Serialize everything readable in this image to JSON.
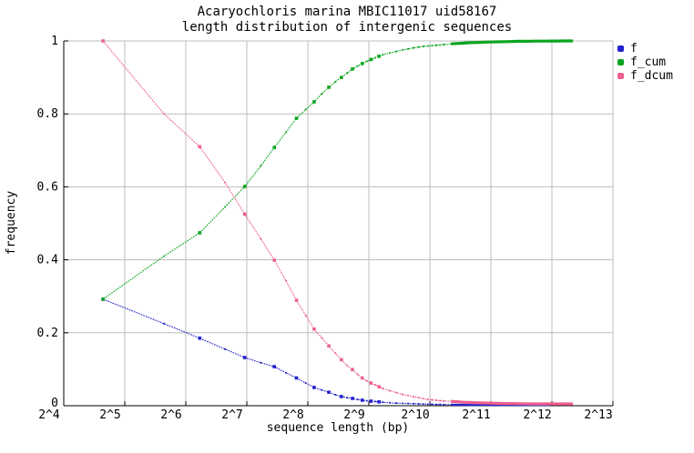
{
  "title": {
    "line1": "Acaryochloris marina MBIC11017 uid58167",
    "line2": "length distribution of intergenic sequences"
  },
  "x_axis": {
    "label": "sequence length (bp)",
    "scale": "log2",
    "tick_labels": [
      "2^4",
      "2^5",
      "2^6",
      "2^7",
      "2^8",
      "2^9",
      "2^10",
      "2^11",
      "2^12",
      "2^13"
    ],
    "tick_values_log2": [
      4,
      5,
      6,
      7,
      8,
      9,
      10,
      11,
      12,
      13
    ]
  },
  "y_axis": {
    "label": "frequency",
    "tick_labels": [
      "0",
      "0.2",
      "0.4",
      "0.6",
      "0.8",
      "1"
    ],
    "tick_values": [
      0,
      0.2,
      0.4,
      0.6,
      0.8,
      1
    ]
  },
  "legend": {
    "items": [
      {
        "label": "f",
        "color": "#2222cc"
      },
      {
        "label": "f_cum",
        "color": "#0aa51e"
      },
      {
        "label": "f_dcum",
        "color": "#ee5f8e"
      }
    ]
  },
  "palette": {
    "background": "#ffffff",
    "grid": "#bdbdbd",
    "axis": "#000000",
    "series_f": "#2222cc",
    "series_f_cum": "#0aa51e",
    "series_f_dcum": "#ee5f8e"
  },
  "chart_data": {
    "type": "line",
    "title": "Acaryochloris marina MBIC11017 uid58167 — length distribution of intergenic sequences",
    "xlabel": "sequence length (bp)",
    "ylabel": "frequency",
    "x_scale": "log2",
    "xlim_log2": [
      4,
      13
    ],
    "ylim": [
      0,
      1
    ],
    "grid": true,
    "legend_position": "outside-top-right",
    "marker_every_bp": 50,
    "series": [
      {
        "name": "f",
        "color": "#2222cc",
        "points": [
          [
            25,
            0.292
          ],
          [
            50,
            0.225
          ],
          [
            75,
            0.185
          ],
          [
            100,
            0.155
          ],
          [
            125,
            0.132
          ],
          [
            150,
            0.118
          ],
          [
            175,
            0.107
          ],
          [
            200,
            0.09
          ],
          [
            225,
            0.076
          ],
          [
            250,
            0.062
          ],
          [
            275,
            0.05
          ],
          [
            300,
            0.043
          ],
          [
            325,
            0.037
          ],
          [
            350,
            0.03
          ],
          [
            375,
            0.025
          ],
          [
            400,
            0.022
          ],
          [
            425,
            0.02
          ],
          [
            450,
            0.017
          ],
          [
            475,
            0.015
          ],
          [
            500,
            0.0135
          ],
          [
            525,
            0.0125
          ],
          [
            550,
            0.0115
          ],
          [
            575,
            0.0105
          ],
          [
            600,
            0.0095
          ],
          [
            650,
            0.008
          ],
          [
            700,
            0.007
          ],
          [
            750,
            0.0065
          ],
          [
            800,
            0.006
          ],
          [
            850,
            0.0055
          ],
          [
            900,
            0.005
          ],
          [
            950,
            0.0045
          ],
          [
            1000,
            0.004
          ],
          [
            1050,
            0.004
          ],
          [
            1100,
            0.0035
          ],
          [
            1150,
            0.0035
          ],
          [
            1200,
            0.003
          ],
          [
            1300,
            0.003
          ],
          [
            1400,
            0.0025
          ],
          [
            1500,
            0.0025
          ],
          [
            1600,
            0.002
          ],
          [
            1700,
            0.002
          ],
          [
            1800,
            0.002
          ],
          [
            1900,
            0.002
          ],
          [
            2000,
            0.002
          ],
          [
            2200,
            0.002
          ],
          [
            2400,
            0.002
          ],
          [
            2600,
            0.002
          ],
          [
            2800,
            0.002
          ],
          [
            3000,
            0.002
          ],
          [
            3200,
            0.002
          ],
          [
            3400,
            0.002
          ],
          [
            3600,
            0.002
          ],
          [
            3800,
            0.002
          ],
          [
            4000,
            0.002
          ]
        ]
      },
      {
        "name": "f_cum",
        "color": "#0aa51e",
        "points": [
          [
            25,
            0.292
          ],
          [
            50,
            0.41
          ],
          [
            75,
            0.474
          ],
          [
            100,
            0.545
          ],
          [
            125,
            0.601
          ],
          [
            150,
            0.657
          ],
          [
            175,
            0.708
          ],
          [
            200,
            0.75
          ],
          [
            225,
            0.788
          ],
          [
            250,
            0.812
          ],
          [
            275,
            0.833
          ],
          [
            300,
            0.855
          ],
          [
            325,
            0.873
          ],
          [
            350,
            0.888
          ],
          [
            375,
            0.9
          ],
          [
            400,
            0.912
          ],
          [
            425,
            0.923
          ],
          [
            450,
            0.931
          ],
          [
            475,
            0.938
          ],
          [
            500,
            0.944
          ],
          [
            525,
            0.949
          ],
          [
            550,
            0.954
          ],
          [
            575,
            0.958
          ],
          [
            600,
            0.962
          ],
          [
            650,
            0.967
          ],
          [
            700,
            0.971
          ],
          [
            750,
            0.975
          ],
          [
            800,
            0.978
          ],
          [
            850,
            0.981
          ],
          [
            900,
            0.983
          ],
          [
            950,
            0.985
          ],
          [
            1000,
            0.986
          ],
          [
            1050,
            0.987
          ],
          [
            1100,
            0.988
          ],
          [
            1150,
            0.989
          ],
          [
            1200,
            0.99
          ],
          [
            1300,
            0.992
          ],
          [
            1400,
            0.993
          ],
          [
            1500,
            0.994
          ],
          [
            1600,
            0.995
          ],
          [
            1700,
            0.9955
          ],
          [
            1800,
            0.996
          ],
          [
            1900,
            0.9965
          ],
          [
            2000,
            0.997
          ],
          [
            2200,
            0.9975
          ],
          [
            2400,
            0.998
          ],
          [
            2600,
            0.9985
          ],
          [
            2800,
            0.999
          ],
          [
            3000,
            0.999
          ],
          [
            3200,
            0.9992
          ],
          [
            3400,
            0.9994
          ],
          [
            3600,
            0.9995
          ],
          [
            3800,
            0.9996
          ],
          [
            4000,
            0.9997
          ],
          [
            4200,
            0.9998
          ],
          [
            4400,
            0.9998
          ],
          [
            4600,
            0.9999
          ],
          [
            4800,
            0.9999
          ],
          [
            5000,
            1.0
          ],
          [
            5200,
            1.0
          ]
        ]
      },
      {
        "name": "f_dcum",
        "color": "#ee5f8e",
        "points": [
          [
            25,
            1.0
          ],
          [
            50,
            0.8
          ],
          [
            75,
            0.71
          ],
          [
            100,
            0.612
          ],
          [
            125,
            0.525
          ],
          [
            150,
            0.458
          ],
          [
            175,
            0.399
          ],
          [
            200,
            0.342
          ],
          [
            225,
            0.289
          ],
          [
            250,
            0.248
          ],
          [
            275,
            0.21
          ],
          [
            300,
            0.186
          ],
          [
            325,
            0.164
          ],
          [
            350,
            0.144
          ],
          [
            375,
            0.126
          ],
          [
            400,
            0.11
          ],
          [
            425,
            0.099
          ],
          [
            450,
            0.086
          ],
          [
            475,
            0.076
          ],
          [
            500,
            0.068
          ],
          [
            525,
            0.062
          ],
          [
            550,
            0.057
          ],
          [
            575,
            0.052
          ],
          [
            600,
            0.047
          ],
          [
            650,
            0.041
          ],
          [
            700,
            0.036
          ],
          [
            750,
            0.031
          ],
          [
            800,
            0.028
          ],
          [
            850,
            0.0245
          ],
          [
            900,
            0.022
          ],
          [
            950,
            0.0195
          ],
          [
            1000,
            0.017
          ],
          [
            1050,
            0.016
          ],
          [
            1100,
            0.015
          ],
          [
            1150,
            0.014
          ],
          [
            1200,
            0.013
          ],
          [
            1300,
            0.012
          ],
          [
            1400,
            0.011
          ],
          [
            1500,
            0.0095
          ],
          [
            1600,
            0.009
          ],
          [
            1700,
            0.0085
          ],
          [
            1800,
            0.008
          ],
          [
            1900,
            0.0075
          ],
          [
            2000,
            0.007
          ],
          [
            2200,
            0.0065
          ],
          [
            2400,
            0.006
          ],
          [
            2600,
            0.006
          ],
          [
            2800,
            0.0055
          ],
          [
            3000,
            0.0055
          ],
          [
            3200,
            0.005
          ],
          [
            3400,
            0.005
          ],
          [
            3600,
            0.005
          ],
          [
            3800,
            0.005
          ],
          [
            4000,
            0.005
          ],
          [
            4200,
            0.005
          ],
          [
            4400,
            0.005
          ],
          [
            4600,
            0.005
          ],
          [
            4800,
            0.005
          ],
          [
            5000,
            0.005
          ],
          [
            5200,
            0.005
          ]
        ]
      }
    ]
  }
}
